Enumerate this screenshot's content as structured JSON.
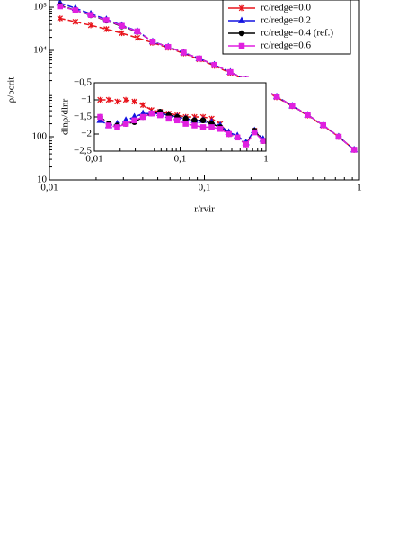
{
  "chart_data": [
    {
      "type": "line",
      "xlabel": "r/rvir",
      "ylabel": "ρ/ρcrit",
      "xscale": "log",
      "yscale": "log",
      "xlim": [
        0.01,
        1
      ],
      "ylim": [
        10,
        147000
      ],
      "xticks": [
        {
          "value": 0.01,
          "label": "0,01"
        },
        {
          "value": 0.1,
          "label": "0,1"
        },
        1
      ],
      "yticks": [
        10,
        100,
        {
          "value": 10000,
          "label": "10⁴"
        },
        {
          "value": 100000,
          "label": "10⁵"
        }
      ],
      "legend": "upper right",
      "x": [
        0.0117,
        0.0147,
        0.0185,
        0.0233,
        0.0293,
        0.0369,
        0.0464,
        0.0584,
        0.0735,
        0.0925,
        0.116,
        0.147,
        0.185,
        0.233,
        0.293,
        0.369,
        0.464,
        0.584,
        0.735,
        0.925
      ],
      "series": [
        {
          "name": "rc/redge=0.0",
          "color": "#e8141c",
          "marker": "x",
          "values": [
            55000,
            46000,
            38000,
            31000,
            25000,
            19500,
            15000,
            11500,
            8500,
            6200,
            4400,
            3000,
            2000,
            1300,
            820,
            510,
            310,
            180,
            100,
            50
          ]
        },
        {
          "name": "rc/redge=0.2",
          "color": "#1414e0",
          "marker": "triangle",
          "values": [
            125000,
            95000,
            70000,
            52000,
            38000,
            28000,
            16000,
            12000,
            8900,
            6500,
            4600,
            3150,
            2100,
            1350,
            850,
            520,
            320,
            185,
            100,
            50
          ]
        },
        {
          "name": "rc/redge=0.4 (ref.)",
          "color": "#000000",
          "marker": "circle",
          "values": [
            110000,
            85000,
            65000,
            49000,
            36000,
            27000,
            16000,
            12000,
            8900,
            6500,
            4600,
            3150,
            2100,
            1350,
            850,
            520,
            320,
            185,
            100,
            50
          ]
        },
        {
          "name": "rc/redge=0.6",
          "color": "#e020e0",
          "marker": "square",
          "values": [
            105000,
            85000,
            66000,
            50000,
            37000,
            27500,
            16000,
            12000,
            8900,
            6500,
            4600,
            3150,
            2100,
            1350,
            850,
            520,
            320,
            185,
            100,
            50
          ]
        }
      ]
    },
    {
      "type": "line",
      "ylabel": "dlnρ/dlnr",
      "xscale": "log",
      "xlim": [
        0.01,
        1
      ],
      "ylim": [
        -2.5,
        -0.5
      ],
      "xticks": [
        {
          "value": 0.01,
          "label": "0,01"
        },
        {
          "value": 0.1,
          "label": "0,1"
        },
        1
      ],
      "yticks": [
        {
          "value": -0.5,
          "label": "−0,5"
        },
        {
          "value": -1,
          "label": "−1"
        },
        {
          "value": -1.5,
          "label": "−1,5"
        },
        {
          "value": -2,
          "label": "−2"
        },
        {
          "value": -2.5,
          "label": "−2,5"
        }
      ],
      "x": [
        0.0117,
        0.0147,
        0.0185,
        0.0233,
        0.0293,
        0.0369,
        0.0464,
        0.0584,
        0.0735,
        0.0925,
        0.116,
        0.147,
        0.185,
        0.233,
        0.293,
        0.369,
        0.464,
        0.584,
        0.735,
        0.925
      ],
      "series": [
        {
          "color": "#e8141c",
          "marker": "x",
          "values": [
            -1.0,
            -1.0,
            -1.05,
            -1.0,
            -1.05,
            -1.15,
            -1.3,
            -1.35,
            -1.4,
            -1.45,
            -1.5,
            -1.5,
            -1.5,
            -1.55,
            -1.7,
            -2.0,
            -2.1,
            -2.3,
            -1.9,
            -2.2
          ]
        },
        {
          "color": "#1414e0",
          "marker": "triangle",
          "values": [
            -1.6,
            -1.75,
            -1.7,
            -1.6,
            -1.5,
            -1.4,
            -1.4,
            -1.4,
            -1.45,
            -1.5,
            -1.55,
            -1.6,
            -1.6,
            -1.65,
            -1.75,
            -1.95,
            -2.05,
            -2.25,
            -1.9,
            -2.15
          ]
        },
        {
          "color": "#000000",
          "marker": "circle",
          "values": [
            -1.5,
            -1.7,
            -1.75,
            -1.7,
            -1.65,
            -1.5,
            -1.4,
            -1.35,
            -1.45,
            -1.5,
            -1.55,
            -1.6,
            -1.6,
            -1.7,
            -1.8,
            -2.0,
            -2.1,
            -2.3,
            -1.9,
            -2.2
          ]
        },
        {
          "color": "#e020e0",
          "marker": "square",
          "values": [
            -1.5,
            -1.75,
            -1.8,
            -1.7,
            -1.6,
            -1.5,
            -1.4,
            -1.45,
            -1.55,
            -1.6,
            -1.7,
            -1.75,
            -1.8,
            -1.8,
            -1.85,
            -2.0,
            -2.1,
            -2.3,
            -1.95,
            -2.2
          ]
        }
      ]
    }
  ]
}
